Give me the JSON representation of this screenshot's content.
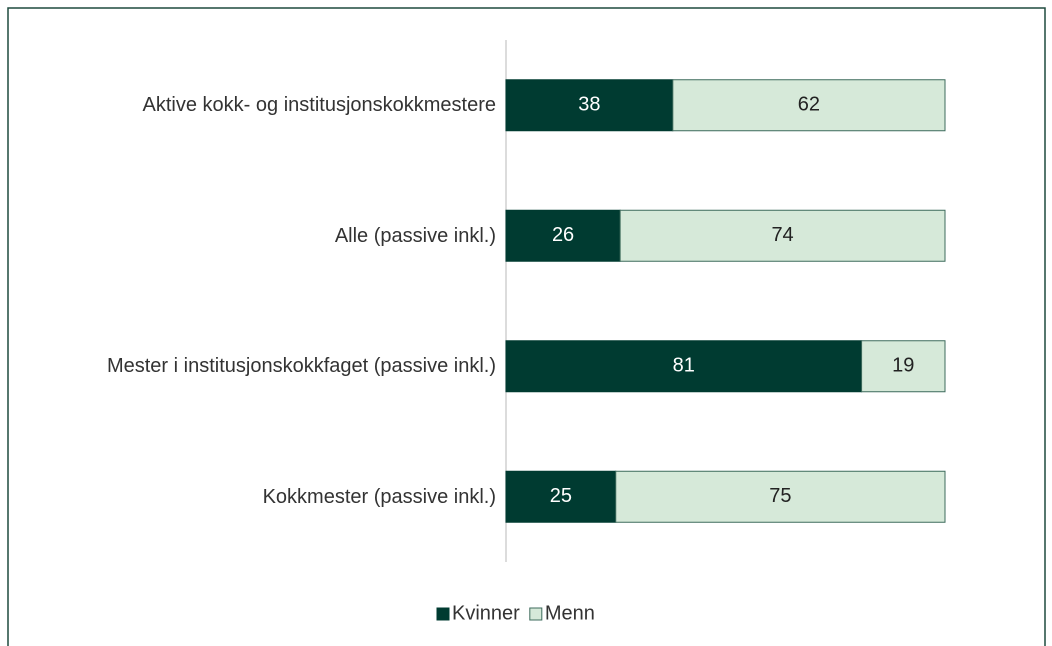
{
  "chart_data": {
    "type": "bar",
    "orientation": "horizontal",
    "stacked": true,
    "categories": [
      "Aktive kokk- og institusjonskokkmestere",
      "Alle (passive inkl.)",
      "Mester i institusjonskokkfaget (passive inkl.)",
      "Kokkmester (passive inkl.)"
    ],
    "series": [
      {
        "name": "Kvinner",
        "color": "#003b31",
        "values": [
          38,
          26,
          81,
          25
        ]
      },
      {
        "name": "Menn",
        "color": "#d6e9d9",
        "values": [
          62,
          74,
          19,
          75
        ]
      }
    ],
    "xlim": [
      0,
      100
    ],
    "legend": "bottom"
  }
}
